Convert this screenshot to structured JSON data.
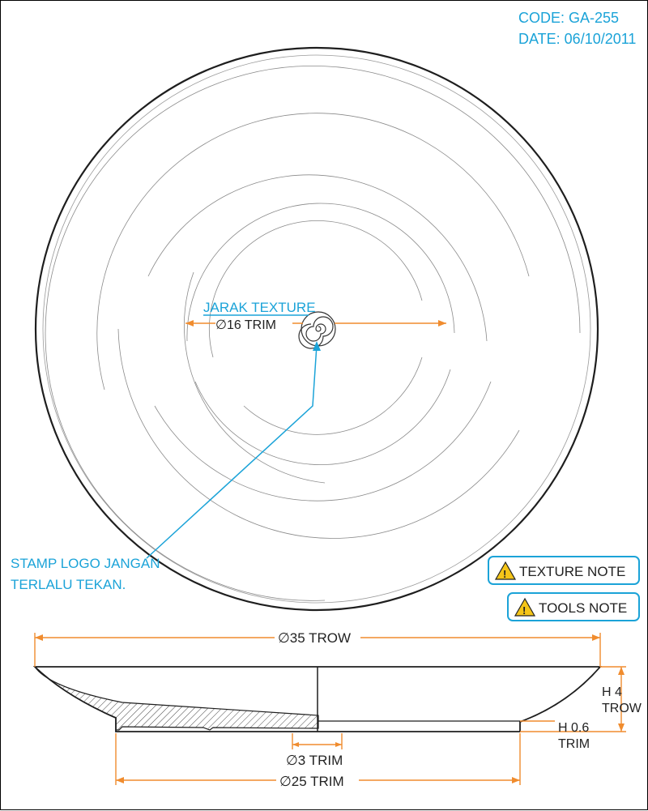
{
  "header": {
    "code": "CODE: GA-255",
    "date": "DATE: 06/10/2011"
  },
  "annotations": {
    "jarak_texture": "JARAK TEXTURE",
    "dia16": "∅16 TRIM",
    "stamp_line1": "STAMP LOGO JANGAN",
    "stamp_line2": "TERLALU TEKAN."
  },
  "notes": {
    "texture_note": "TEXTURE NOTE",
    "tools_note": "TOOLS NOTE"
  },
  "dimensions": {
    "dia35": "∅35 TROW",
    "dia3": "∅3 TRIM",
    "dia25": "∅25 TRIM",
    "h4": "H 4",
    "h4_sub": "TROW",
    "h06": "H 0.6",
    "h06_sub": "TRIM"
  },
  "colors": {
    "annotation": "#1ba3d8",
    "dimension": "#f08c2e",
    "drawing": "#222222",
    "warning": "#f5c518"
  }
}
